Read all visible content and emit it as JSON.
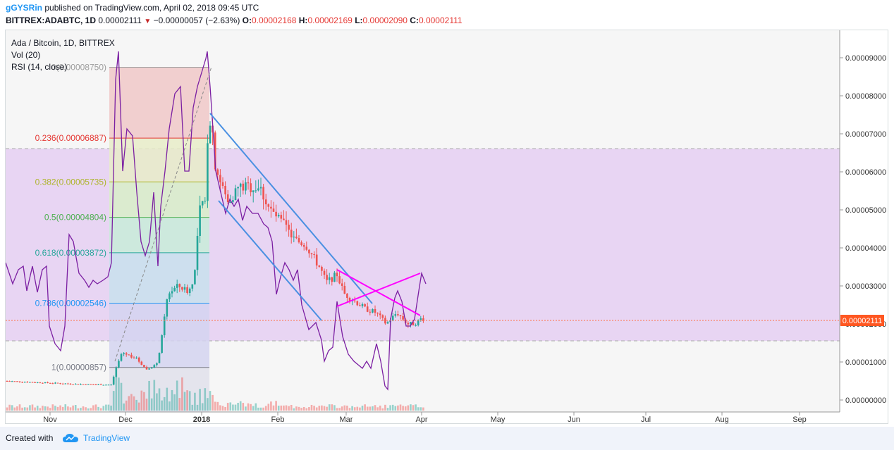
{
  "header": {
    "user": "gGYSRin",
    "published": "published on TradingView.com, April 02, 2018 09:45 UTC",
    "symbol": "BITTREX:ADABTC, 1D",
    "last": "0.00002111",
    "change": "−0.00000057 (−2.63%)",
    "open_label": "O:",
    "open": "0.00002168",
    "high_label": "H:",
    "high": "0.00002169",
    "low_label": "L:",
    "low": "0.00002090",
    "close_label": "C:",
    "close": "0.00002111"
  },
  "legend": {
    "title": "Ada / Bitcoin, 1D, BITTREX",
    "vol": "Vol (20)",
    "rsi": "RSI (14, close)"
  },
  "price_axis": {
    "ticks": [
      "0.00009000",
      "0.00008000",
      "0.00007000",
      "0.00006000",
      "0.00005000",
      "0.00004000",
      "0.00003000",
      "0.00002000",
      "0.00001000",
      "0.00000000"
    ],
    "current": "0.00002111"
  },
  "time_axis": {
    "ticks": [
      "Nov",
      "Dec",
      "2018",
      "Feb",
      "Mar",
      "Apr",
      "May",
      "Jun",
      "Jul",
      "Aug",
      "Sep"
    ]
  },
  "fib": {
    "levels": [
      {
        "label": "0(0.00008750)",
        "color": "#9e9e9e"
      },
      {
        "label": "0.236(0.00006887)",
        "color": "#e53935"
      },
      {
        "label": "0.382(0.00005735)",
        "color": "#aeb52b"
      },
      {
        "label": "0.5(0.00004804)",
        "color": "#4caf50"
      },
      {
        "label": "0.618(0.00003872)",
        "color": "#26a69a"
      },
      {
        "label": "0.786(0.00002546)",
        "color": "#2196f3"
      },
      {
        "label": "1(0.00000857)",
        "color": "#787b86"
      }
    ]
  },
  "colors": {
    "up": "#26a69a",
    "down": "#ef5350",
    "rsi": "#7b1fa2",
    "trend": "#4a90e2",
    "wedge": "#ff00ff",
    "rsi_band": "#e1bee7"
  },
  "footer": {
    "created": "Created with",
    "brand": "TradingView"
  }
}
